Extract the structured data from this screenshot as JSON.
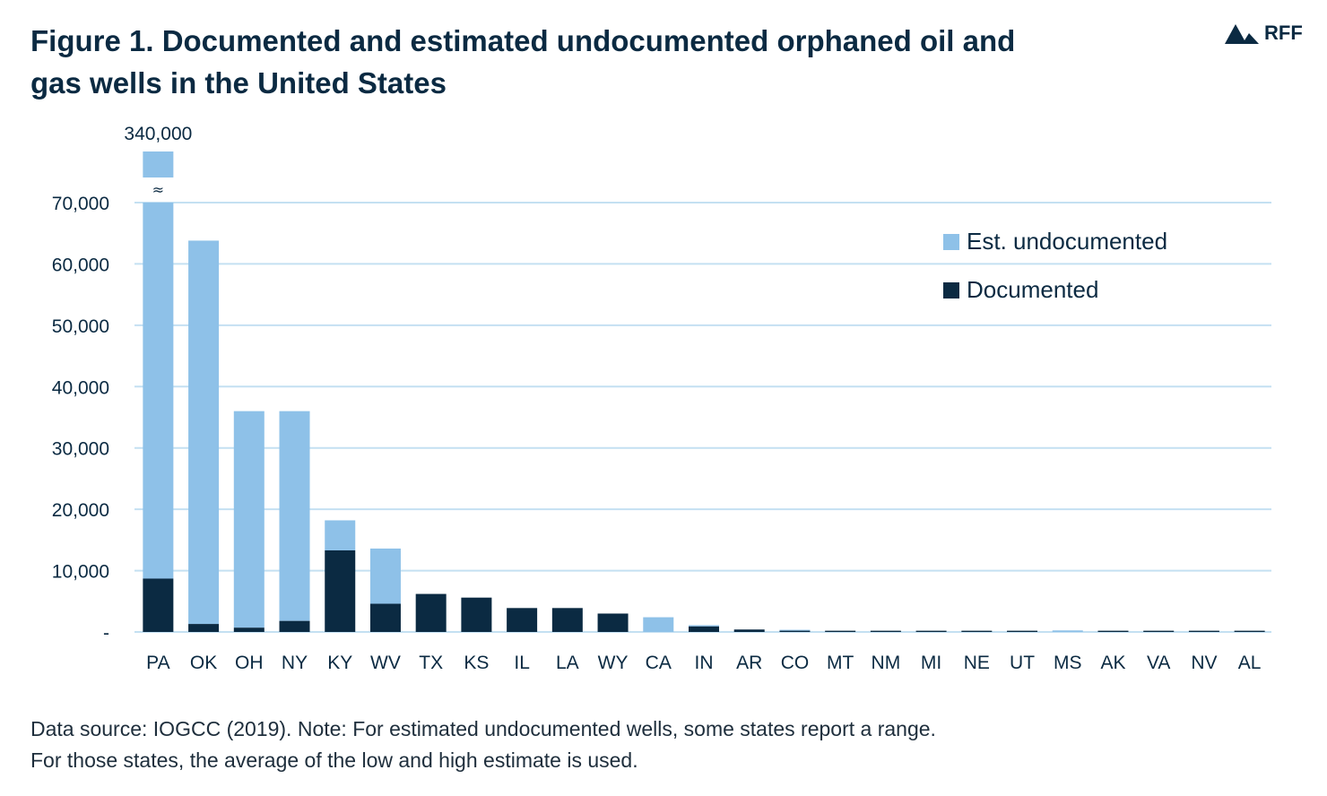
{
  "title": "Figure 1. Documented and estimated undocumented orphaned oil and gas wells in the United States",
  "logo": {
    "text": "RFF",
    "icon": "mountain-icon"
  },
  "note": {
    "line1": "Data source: IOGCC (2019). Note: For estimated undocumented wells, some states report a range.",
    "line2": "For those states, the average of the low and high estimate is used."
  },
  "colors": {
    "documented": "#0b2a42",
    "undocumented": "#8ec1e8",
    "grid": "#c4e0f2",
    "text": "#0b2a42"
  },
  "chart_data": {
    "type": "bar",
    "stacked": true,
    "categories": [
      "PA",
      "OK",
      "OH",
      "NY",
      "KY",
      "WV",
      "TX",
      "KS",
      "IL",
      "LA",
      "WY",
      "CA",
      "IN",
      "AR",
      "CO",
      "MT",
      "NM",
      "MI",
      "NE",
      "UT",
      "MS",
      "AK",
      "VA",
      "NV",
      "AL"
    ],
    "series": [
      {
        "name": "Documented",
        "color": "#0b2a42",
        "values": [
          8700,
          1300,
          700,
          1800,
          13300,
          4600,
          6200,
          5600,
          3900,
          3900,
          3000,
          0,
          900,
          400,
          200,
          200,
          200,
          200,
          200,
          200,
          0,
          200,
          200,
          200,
          200
        ]
      },
      {
        "name": "Est. undocumented",
        "color": "#8ec1e8",
        "values": [
          331300,
          62500,
          35300,
          34200,
          4900,
          9000,
          0,
          0,
          0,
          0,
          0,
          2400,
          200,
          0,
          150,
          0,
          0,
          0,
          0,
          0,
          250,
          0,
          0,
          0,
          0
        ]
      }
    ],
    "totals_label": {
      "category": "PA",
      "text": "340,000"
    },
    "ylim": [
      0,
      70000
    ],
    "yticks": [
      0,
      10000,
      20000,
      30000,
      40000,
      50000,
      60000,
      70000
    ],
    "ytick_labels": [
      "-",
      "10,000",
      "20,000",
      "30,000",
      "40,000",
      "50,000",
      "60,000",
      "70,000"
    ],
    "axis_break": {
      "category": "PA",
      "symbol": "≈"
    },
    "grid": true,
    "legend": {
      "position": "top-right",
      "entries": [
        "Est. undocumented",
        "Documented"
      ]
    },
    "xlabel": "",
    "ylabel": ""
  }
}
